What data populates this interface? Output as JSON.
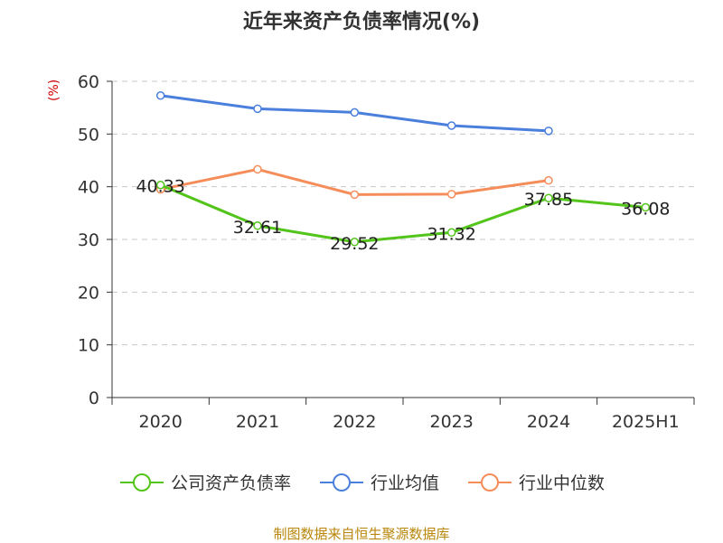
{
  "chart_data": {
    "type": "line",
    "title": "近年来资产负债率情况(%)",
    "ylabel": "(%)",
    "categories": [
      "2020",
      "2021",
      "2022",
      "2023",
      "2024",
      "2025H1"
    ],
    "ylim": [
      0,
      60
    ],
    "yticks": [
      0,
      10,
      20,
      30,
      40,
      50,
      60
    ],
    "grid": true,
    "legend_position": "bottom",
    "series": [
      {
        "name": "公司资产负债率",
        "color": "#52c41a",
        "values": [
          40.33,
          32.61,
          29.52,
          31.32,
          37.85,
          36.08
        ],
        "show_labels": true
      },
      {
        "name": "行业均值",
        "color": "#4a7fdc",
        "values": [
          57.3,
          54.8,
          54.1,
          51.6,
          50.6,
          null
        ],
        "show_labels": false
      },
      {
        "name": "行业中位数",
        "color": "#f58d5a",
        "values": [
          39.5,
          43.3,
          38.5,
          38.6,
          41.2,
          null
        ],
        "show_labels": false
      }
    ]
  },
  "footer": {
    "source": "制图数据来自恒生聚源数据库"
  }
}
